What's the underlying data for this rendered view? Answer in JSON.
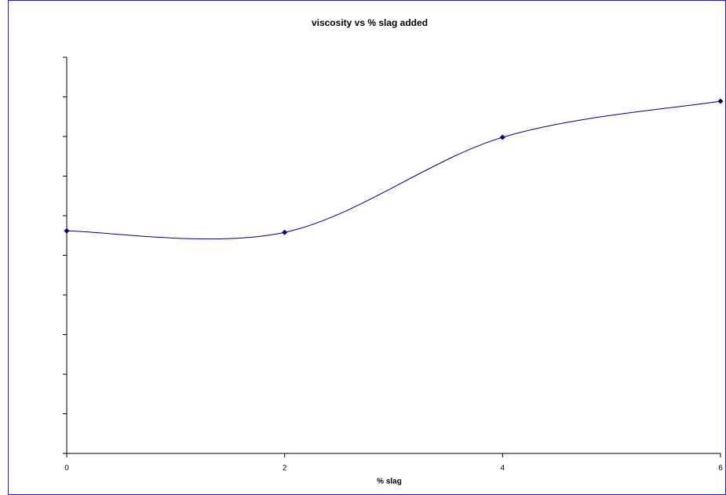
{
  "chart_data": {
    "type": "line",
    "title": "viscosity vs % slag added",
    "x_label": "% slag",
    "x": [
      0,
      2,
      4,
      6
    ],
    "series": [
      {
        "color": "#000080",
        "values": [
          5.62,
          5.58,
          7.98,
          8.89
        ]
      }
    ],
    "xlim": [
      0,
      6
    ],
    "xticks": [
      0,
      2,
      4,
      6
    ],
    "ylim": [
      0,
      10
    ],
    "yticks": [
      0,
      1,
      2,
      3,
      4,
      5,
      6,
      7,
      8,
      9,
      10
    ],
    "smooth": true
  }
}
